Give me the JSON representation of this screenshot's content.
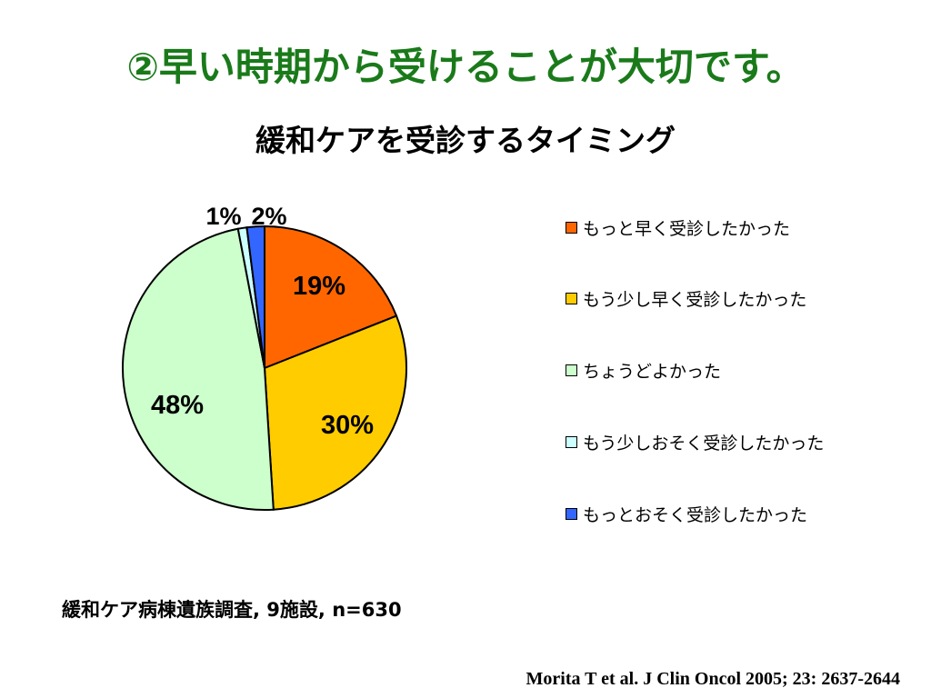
{
  "slide": {
    "title": "②早い時期から受けることが大切です。",
    "footnote": "緩和ケア病棟遺族調査, 9施設, n=630",
    "citation": "Morita T et al.  J Clin Oncol 2005; 23: 2637-2644"
  },
  "chart_data": {
    "type": "pie",
    "title": "緩和ケアを受診するタイミング",
    "start_angle_deg": 0,
    "direction": "clockwise",
    "legend_position": "right",
    "slices": [
      {
        "label": "もっと早く受診したかった",
        "value": 19,
        "value_label": "19%",
        "color": "#ff6600"
      },
      {
        "label": "もう少し早く受診したかった",
        "value": 30,
        "value_label": "30%",
        "color": "#ffcc00"
      },
      {
        "label": "ちょうどよかった",
        "value": 48,
        "value_label": "48%",
        "color": "#ccffcc"
      },
      {
        "label": "もう少しおそく受診したかった",
        "value": 1,
        "value_label": "1%",
        "color": "#ccffff"
      },
      {
        "label": "もっとおそく受診したかった",
        "value": 2,
        "value_label": "2%",
        "color": "#3366ff"
      }
    ]
  }
}
